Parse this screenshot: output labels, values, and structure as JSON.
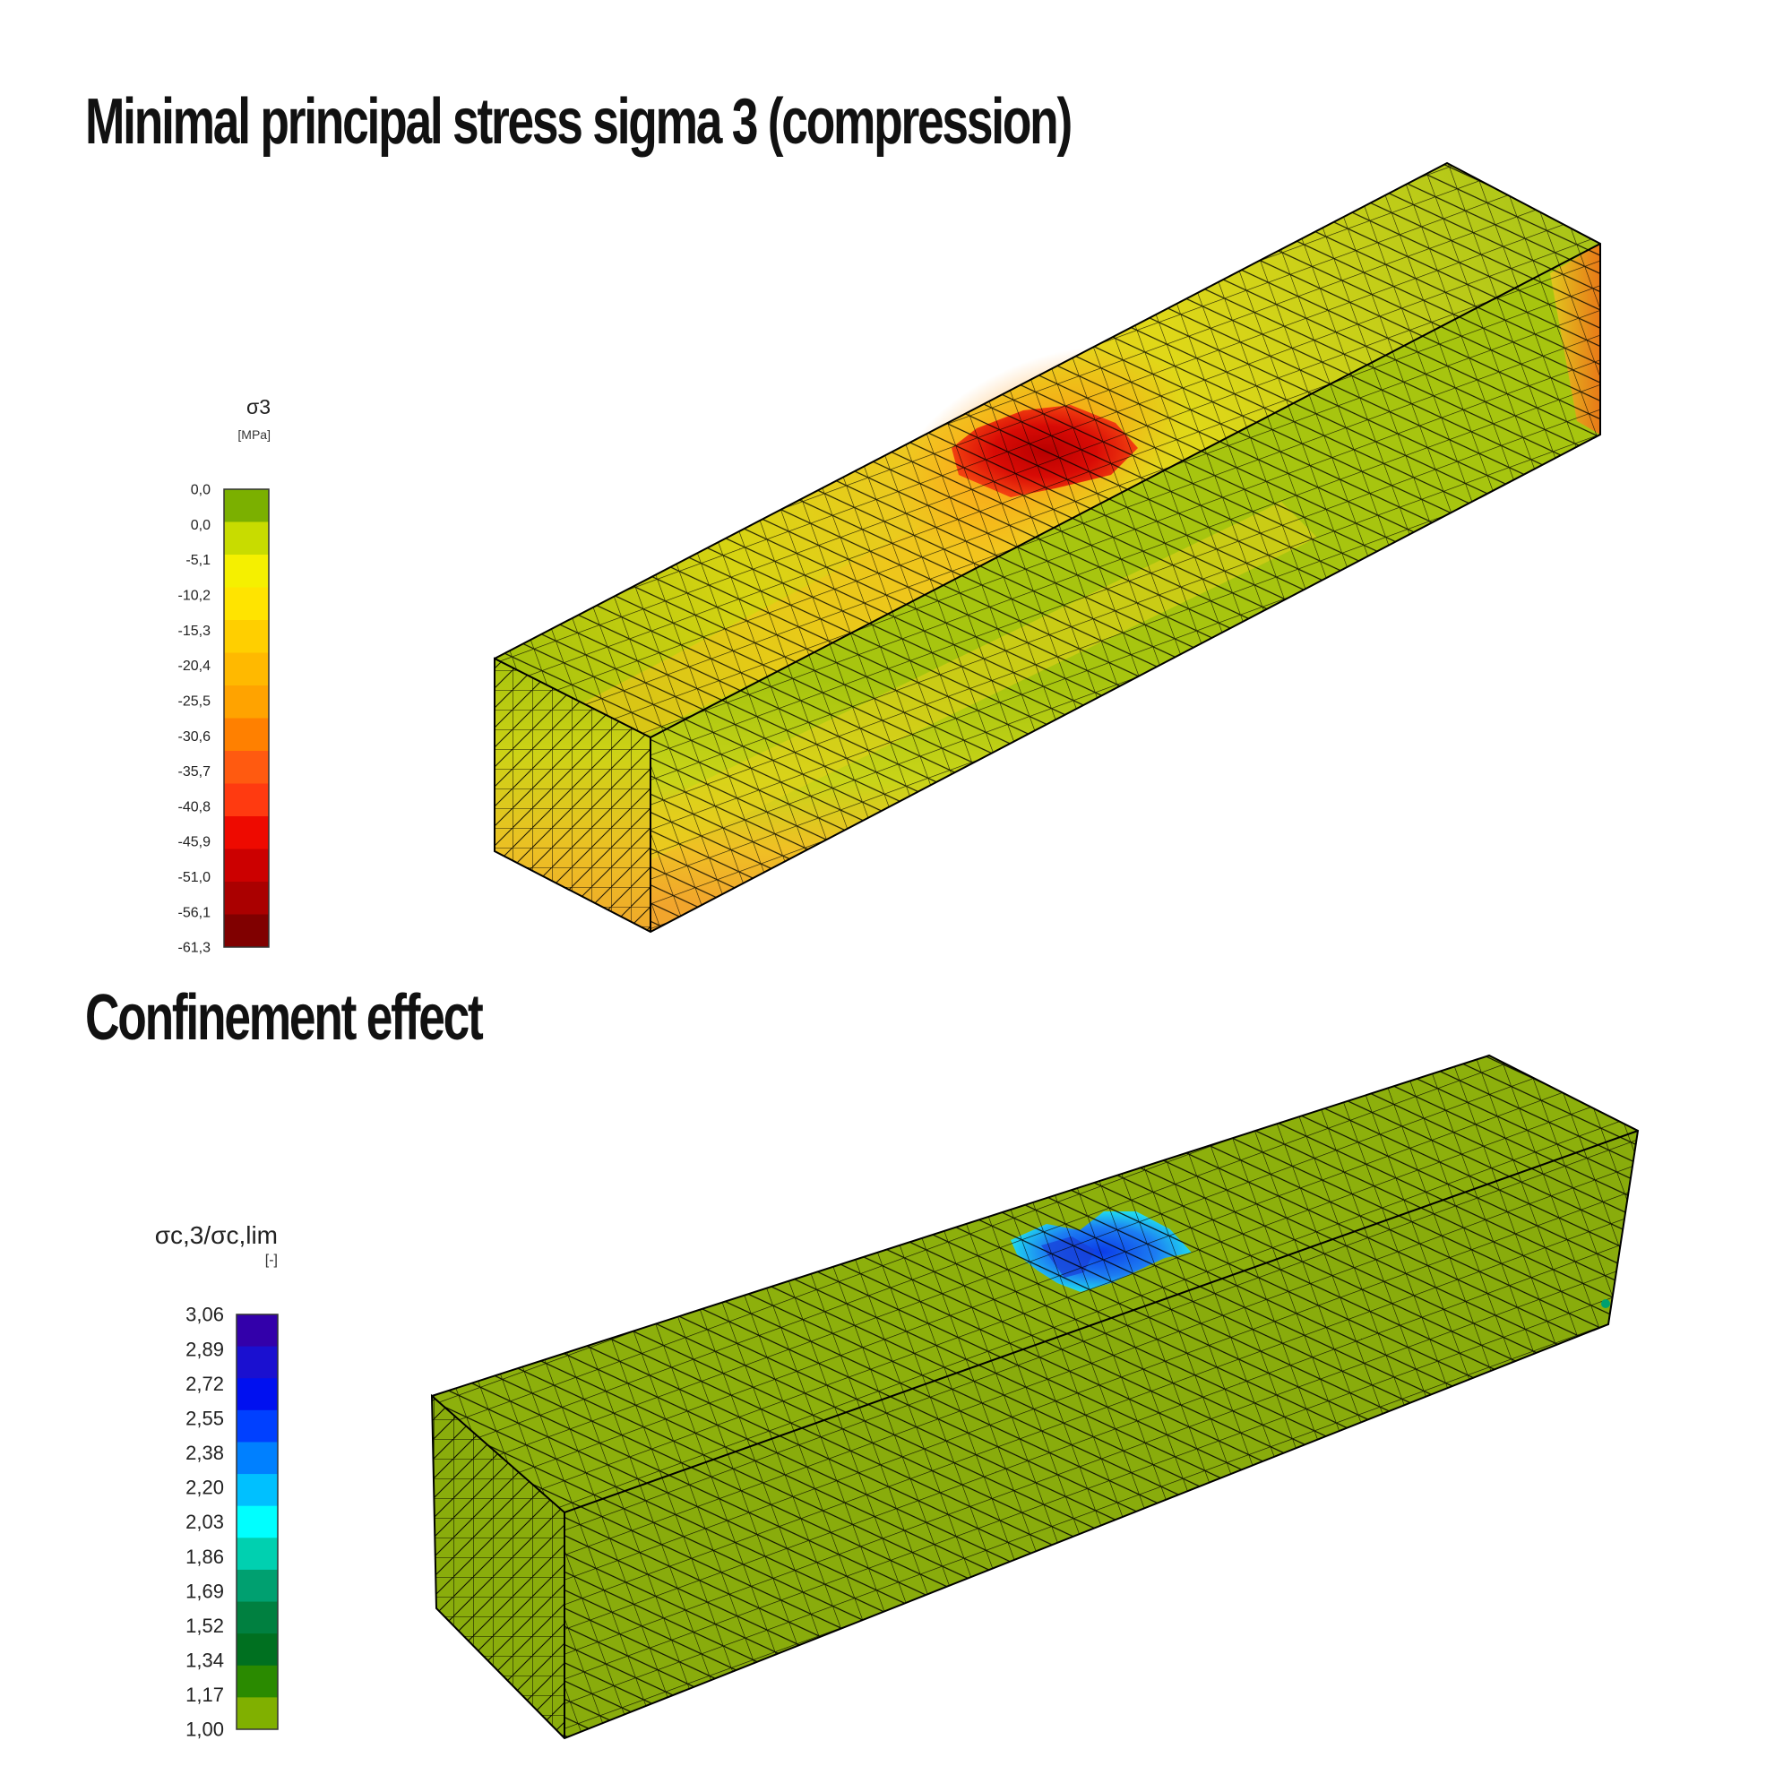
{
  "panels": [
    {
      "title": "Minimal principal stress sigma 3 (compression)",
      "legend": {
        "symbol": "σ3",
        "unit": "[MPa]",
        "ticks": [
          "0,0",
          "0,0",
          "-5,1",
          "-10,2",
          "-15,3",
          "-20,4",
          "-25,5",
          "-30,6",
          "-35,7",
          "-40,8",
          "-45,9",
          "-51,0",
          "-56,1",
          "-61,3"
        ],
        "colors": [
          "#7bb000",
          "#c8dc00",
          "#f5f000",
          "#ffe400",
          "#ffcf00",
          "#ffb900",
          "#ffa300",
          "#ff8000",
          "#ff5a10",
          "#ff3a10",
          "#ee0a00",
          "#cc0000",
          "#aa0000",
          "#800000"
        ]
      }
    },
    {
      "title": "Confinement effect",
      "legend": {
        "symbol": "σc,3/σc,lim",
        "unit": "[-]",
        "ticks": [
          "3,06",
          "2,89",
          "2,72",
          "2,55",
          "2,38",
          "2,20",
          "2,03",
          "1,86",
          "1,69",
          "1,52",
          "1,34",
          "1,17",
          "1,00"
        ],
        "colors": [
          "#3300aa",
          "#1a10d0",
          "#0010f0",
          "#0040ff",
          "#0080ff",
          "#00c0ff",
          "#00ffff",
          "#00d0b0",
          "#00a070",
          "#008040",
          "#007020",
          "#2a8a00",
          "#80b000"
        ]
      }
    }
  ]
}
